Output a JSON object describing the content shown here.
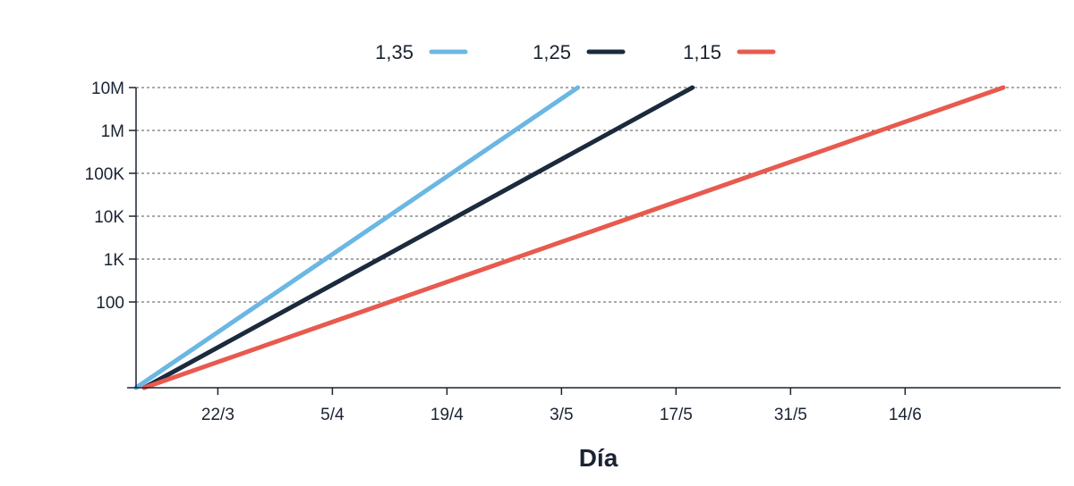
{
  "chart_data": {
    "type": "line",
    "title": "",
    "xlabel": "Día",
    "ylabel": "",
    "y_scale": "log",
    "y_ticks": [
      {
        "value": 100,
        "label": "100"
      },
      {
        "value": 1000,
        "label": "1K"
      },
      {
        "value": 10000,
        "label": "10K"
      },
      {
        "value": 100000,
        "label": "100K"
      },
      {
        "value": 1000000,
        "label": "1M"
      },
      {
        "value": 10000000,
        "label": "10M"
      }
    ],
    "ylim": [
      1,
      10000000
    ],
    "x_ticks": [
      {
        "date": "2020-03-22",
        "label": "22/3"
      },
      {
        "date": "2020-04-05",
        "label": "5/4"
      },
      {
        "date": "2020-04-19",
        "label": "19/4"
      },
      {
        "date": "2020-05-03",
        "label": "3/5"
      },
      {
        "date": "2020-05-17",
        "label": "17/5"
      },
      {
        "date": "2020-05-31",
        "label": "31/5"
      },
      {
        "date": "2020-06-14",
        "label": "14/6"
      }
    ],
    "xlim": [
      "2020-03-12",
      "2020-07-03"
    ],
    "grid": {
      "y": true,
      "x": false,
      "style": "dashed"
    },
    "legend_position": "top",
    "series": [
      {
        "name": "1,35",
        "color": "#6bb7e4",
        "points": [
          {
            "x": "2020-03-12",
            "y": 1
          },
          {
            "x": "2020-05-05",
            "y": 10000000
          }
        ]
      },
      {
        "name": "1,25",
        "color": "#1b2a3d",
        "points": [
          {
            "x": "2020-03-13",
            "y": 1
          },
          {
            "x": "2020-05-19",
            "y": 10000000
          }
        ]
      },
      {
        "name": "1,15",
        "color": "#e85a4f",
        "points": [
          {
            "x": "2020-03-13",
            "y": 1
          },
          {
            "x": "2020-06-26",
            "y": 10000000
          }
        ]
      }
    ]
  }
}
